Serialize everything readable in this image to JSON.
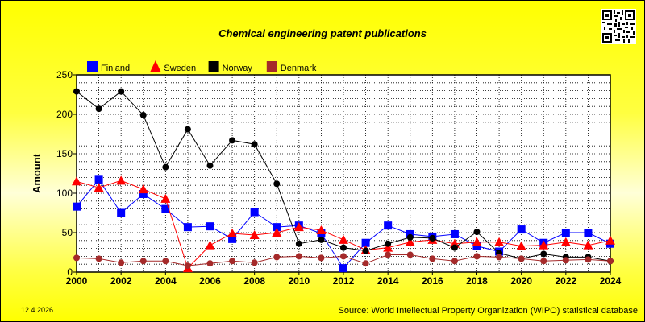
{
  "date_stamp": "12.4.2026",
  "source": "Source: World Intellectual Property Organization (WIPO) statistical database",
  "qr_icon": "qr-code-icon",
  "chart_data": {
    "type": "line",
    "title": "Chemical engineering patent publications",
    "xlabel": "",
    "ylabel": "Amount",
    "x": [
      2000,
      2001,
      2002,
      2003,
      2004,
      2005,
      2006,
      2007,
      2008,
      2009,
      2010,
      2011,
      2012,
      2013,
      2014,
      2015,
      2016,
      2017,
      2018,
      2019,
      2020,
      2021,
      2022,
      2023,
      2024
    ],
    "xticks": [
      "2000",
      "2002",
      "2004",
      "2006",
      "2008",
      "2010",
      "2012",
      "2014",
      "2016",
      "2018",
      "2020",
      "2022",
      "2024"
    ],
    "xlim": [
      2000,
      2024
    ],
    "ylim": [
      0,
      250
    ],
    "yticks": [
      0,
      50,
      100,
      150,
      200,
      250
    ],
    "grid": true,
    "legend_position": "top-left",
    "series": [
      {
        "name": "Finland",
        "color": "#0000ff",
        "marker": "square",
        "values": [
          83,
          117,
          75,
          99,
          80,
          57,
          58,
          42,
          76,
          57,
          59,
          49,
          5,
          37,
          59,
          48,
          45,
          48,
          33,
          26,
          54,
          37,
          50,
          50,
          36
        ]
      },
      {
        "name": "Sweden",
        "color": "#ff0000",
        "marker": "triangle",
        "values": [
          115,
          107,
          116,
          105,
          93,
          5,
          34,
          49,
          47,
          50,
          57,
          53,
          41,
          28,
          31,
          38,
          41,
          36,
          38,
          38,
          33,
          34,
          38,
          34,
          40
        ]
      },
      {
        "name": "Norway",
        "color": "#000000",
        "marker": "circle",
        "values": [
          229,
          207,
          229,
          199,
          133,
          181,
          135,
          167,
          162,
          112,
          36,
          41,
          31,
          27,
          36,
          44,
          43,
          31,
          51,
          24,
          17,
          23,
          19,
          19,
          14
        ]
      },
      {
        "name": "Denmark",
        "color": "#a52a2a",
        "marker": "circle",
        "values": [
          18,
          17,
          12,
          14,
          14,
          8,
          11,
          14,
          12,
          19,
          20,
          18,
          20,
          11,
          22,
          22,
          17,
          14,
          20,
          19,
          17,
          14,
          15,
          16,
          14
        ]
      }
    ]
  }
}
